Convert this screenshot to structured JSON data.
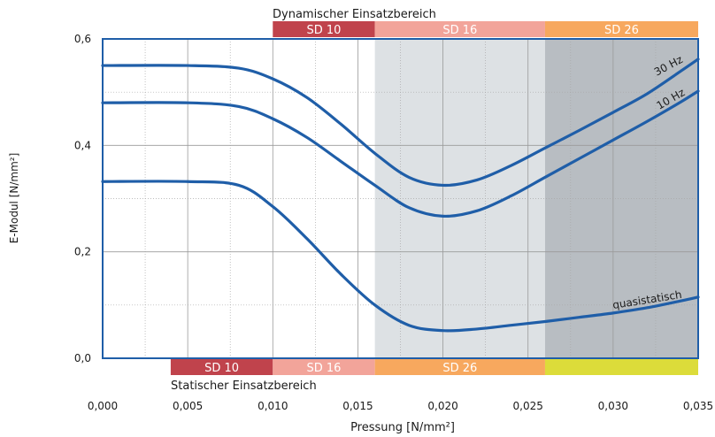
{
  "chart_data": {
    "type": "line",
    "xlabel": "Pressung [N/mm²]",
    "ylabel": "E-Modul [N/mm²]",
    "xlim": [
      0,
      0.035
    ],
    "ylim": [
      0,
      0.6
    ],
    "x_ticks": [
      "0,000",
      "0,005",
      "0,010",
      "0,015",
      "0,020",
      "0,025",
      "0,030",
      "0,035"
    ],
    "y_ticks": [
      "0,0",
      "0,2",
      "0,4",
      "0,6"
    ],
    "grid": "both",
    "top_band_title": "Dynamischer Einsatzbereich",
    "bottom_band_title": "Statischer Einsatzbereich",
    "top_bands": [
      {
        "label": "SD 10",
        "from": 0.01,
        "to": 0.016,
        "color": "#c0434c"
      },
      {
        "label": "SD 16",
        "from": 0.016,
        "to": 0.026,
        "color": "#f2a49a"
      },
      {
        "label": "SD 26",
        "from": 0.026,
        "to": 0.035,
        "color": "#f7a85e"
      }
    ],
    "bottom_bands": [
      {
        "label": "SD 10",
        "from": 0.004,
        "to": 0.01,
        "color": "#c0434c"
      },
      {
        "label": "SD 16",
        "from": 0.01,
        "to": 0.016,
        "color": "#f2a49a"
      },
      {
        "label": "SD 26",
        "from": 0.016,
        "to": 0.026,
        "color": "#f7a85e"
      },
      {
        "label": "",
        "from": 0.026,
        "to": 0.035,
        "color": "#dcdc3a"
      }
    ],
    "shaded_regions": [
      {
        "from": 0.016,
        "to": 0.026,
        "color": "#dde1e4"
      },
      {
        "from": 0.026,
        "to": 0.035,
        "color": "#b8bdc2"
      }
    ],
    "series": [
      {
        "name": "30 Hz",
        "color": "#1f5ea8",
        "points": [
          [
            0,
            0.55
          ],
          [
            0.005,
            0.55
          ],
          [
            0.008,
            0.545
          ],
          [
            0.01,
            0.525
          ],
          [
            0.012,
            0.49
          ],
          [
            0.014,
            0.44
          ],
          [
            0.016,
            0.385
          ],
          [
            0.018,
            0.34
          ],
          [
            0.02,
            0.325
          ],
          [
            0.022,
            0.335
          ],
          [
            0.024,
            0.362
          ],
          [
            0.026,
            0.395
          ],
          [
            0.028,
            0.428
          ],
          [
            0.03,
            0.462
          ],
          [
            0.032,
            0.497
          ],
          [
            0.034,
            0.54
          ],
          [
            0.035,
            0.562
          ]
        ]
      },
      {
        "name": "10 Hz",
        "color": "#1f5ea8",
        "points": [
          [
            0,
            0.48
          ],
          [
            0.005,
            0.48
          ],
          [
            0.008,
            0.473
          ],
          [
            0.01,
            0.45
          ],
          [
            0.012,
            0.415
          ],
          [
            0.014,
            0.37
          ],
          [
            0.016,
            0.325
          ],
          [
            0.018,
            0.283
          ],
          [
            0.02,
            0.267
          ],
          [
            0.022,
            0.277
          ],
          [
            0.024,
            0.305
          ],
          [
            0.026,
            0.34
          ],
          [
            0.028,
            0.375
          ],
          [
            0.03,
            0.41
          ],
          [
            0.032,
            0.445
          ],
          [
            0.034,
            0.482
          ],
          [
            0.035,
            0.502
          ]
        ]
      },
      {
        "name": "quasistatisch",
        "color": "#1f5ea8",
        "points": [
          [
            0,
            0.332
          ],
          [
            0.005,
            0.332
          ],
          [
            0.008,
            0.325
          ],
          [
            0.01,
            0.285
          ],
          [
            0.012,
            0.225
          ],
          [
            0.014,
            0.158
          ],
          [
            0.016,
            0.1
          ],
          [
            0.018,
            0.062
          ],
          [
            0.02,
            0.052
          ],
          [
            0.022,
            0.055
          ],
          [
            0.024,
            0.062
          ],
          [
            0.026,
            0.069
          ],
          [
            0.028,
            0.077
          ],
          [
            0.03,
            0.085
          ],
          [
            0.032,
            0.095
          ],
          [
            0.034,
            0.108
          ],
          [
            0.035,
            0.115
          ]
        ]
      }
    ]
  }
}
